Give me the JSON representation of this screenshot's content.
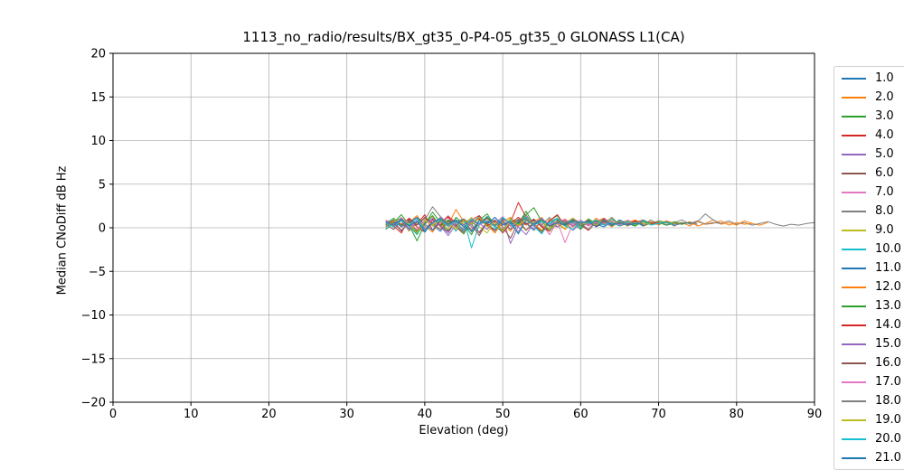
{
  "chart_data": {
    "type": "line",
    "title": "1113_no_radio/results/BX_gt35_0-P4-05_gt35_0 GLONASS L1(CA)",
    "xlabel": "Elevation (deg)",
    "ylabel": "Median CNoDiff dB Hz",
    "xlim": [
      0,
      90
    ],
    "ylim": [
      -20,
      20
    ],
    "xticks": [
      0,
      10,
      20,
      30,
      40,
      50,
      60,
      70,
      80,
      90
    ],
    "yticks": [
      -20,
      -15,
      -10,
      -5,
      0,
      5,
      10,
      15,
      20
    ],
    "grid": true,
    "grid_color": "#b0b0b0",
    "spine_color": "#000000",
    "text_color": "#000000",
    "legend_position": "right-outside",
    "series": [
      {
        "name": "1.0",
        "color": "#1f77b4",
        "x_start": 35,
        "x_step": 1,
        "values": [
          0.5,
          0.2,
          0.8,
          -0.1,
          0.4,
          1.1,
          0.3,
          -0.4,
          0.6,
          0.9,
          0.1,
          0.5,
          1.3,
          0.4,
          -0.2,
          0.7,
          0.2,
          1.0,
          0.5,
          -0.3,
          0.8,
          0.3,
          1.1,
          0.2,
          0.6,
          -0.1,
          0.9,
          0.4,
          0.1,
          0.7,
          0.3,
          0.5,
          0.2,
          0.8,
          0.4,
          0.6,
          0.3,
          0.5,
          0.4
        ]
      },
      {
        "name": "2.0",
        "color": "#ff7f0e",
        "x_start": 35,
        "x_step": 1,
        "values": [
          0.3,
          0.9,
          0.1,
          0.6,
          1.4,
          0.2,
          -0.5,
          0.8,
          0.3,
          2.1,
          0.7,
          -0.2,
          0.5,
          1.0,
          0.2,
          0.6,
          -0.4,
          0.9,
          0.3,
          0.7,
          1.2,
          0.1,
          0.5,
          -0.2,
          0.8,
          0.4,
          1.0,
          0.3,
          0.6,
          0.1,
          0.7,
          0.4,
          0.9,
          0.2,
          0.5,
          0.8,
          0.3,
          0.6,
          0.4,
          0.7,
          0.2,
          0.5,
          0.9,
          0.4,
          0.6,
          0.3,
          0.8,
          0.5,
          0.3,
          0.6
        ]
      },
      {
        "name": "3.0",
        "color": "#2ca02c",
        "x_start": 35,
        "x_step": 1,
        "values": [
          -0.2,
          0.6,
          1.5,
          0.3,
          -1.5,
          0.4,
          1.8,
          0.6,
          -0.3,
          1.2,
          0.4,
          -0.8,
          0.9,
          1.6,
          0.2,
          -0.5,
          1.1,
          0.5,
          1.9,
          0.3,
          -0.4,
          0.8,
          1.4,
          0.2,
          0.7,
          -0.2,
          1.0,
          0.5,
          0.9,
          0.3,
          0.6,
          0.8,
          0.4,
          0.7,
          0.5,
          0.8,
          0.6
        ]
      },
      {
        "name": "4.0",
        "color": "#d62728",
        "x_start": 35,
        "x_step": 1,
        "values": [
          0.8,
          0.2,
          -0.6,
          1.1,
          0.4,
          1.5,
          -0.3,
          0.7,
          1.2,
          0.1,
          -0.7,
          0.9,
          1.4,
          0.3,
          -0.4,
          1.0,
          0.6,
          2.9,
          1.2,
          0.4,
          -0.6,
          0.8,
          1.5,
          0.2,
          0.9,
          0.3,
          -0.3,
          0.7,
          1.1,
          0.4,
          0.8,
          0.2,
          0.6,
          0.9,
          0.5
        ]
      },
      {
        "name": "5.0",
        "color": "#9467bd",
        "x_start": 35,
        "x_step": 1,
        "values": [
          0.1,
          0.7,
          -0.3,
          0.5,
          1.0,
          -0.1,
          0.6,
          0.2,
          -0.9,
          0.4,
          0.8,
          0.1,
          -0.5,
          0.7,
          0.3,
          1.1,
          -1.8,
          0.2,
          0.6,
          -0.2,
          0.9,
          0.4,
          0.1,
          0.7,
          -0.3,
          0.5,
          0.8,
          0.2,
          0.6,
          0.3,
          0.7,
          0.4,
          0.5
        ]
      },
      {
        "name": "6.0",
        "color": "#8c564b",
        "x_start": 35,
        "x_step": 1,
        "values": [
          0.4,
          -0.2,
          0.9,
          0.3,
          -0.7,
          0.6,
          1.1,
          0.2,
          -0.4,
          0.8,
          0.3,
          1.0,
          -0.6,
          0.5,
          0.9,
          0.1,
          -1.2,
          0.7,
          0.4,
          1.0,
          0.2,
          -0.3,
          0.6,
          0.9,
          0.3,
          0.5,
          -0.2,
          0.7,
          0.4,
          0.6,
          0.2,
          0.5
        ]
      },
      {
        "name": "7.0",
        "color": "#e377c2",
        "x_start": 35,
        "x_step": 1,
        "values": [
          0.9,
          0.4,
          1.2,
          0.1,
          0.6,
          -0.3,
          1.0,
          0.5,
          1.4,
          0.2,
          -0.5,
          0.8,
          0.3,
          1.1,
          0.6,
          -0.2,
          0.9,
          0.4,
          1.3,
          0.1,
          0.5,
          -0.8,
          0.7,
          1.0,
          0.3,
          0.6,
          0.2,
          0.8,
          0.4,
          0.7,
          0.3,
          0.9,
          0.5,
          0.6,
          0.4,
          0.7
        ]
      },
      {
        "name": "8.0",
        "color": "#7f7f7f",
        "x_start": 35,
        "x_step": 1,
        "values": [
          0.2,
          0.7,
          1.1,
          0.4,
          -0.3,
          0.9,
          2.4,
          1.3,
          0.5,
          -0.2,
          0.8,
          0.3,
          1.2,
          0.6,
          -0.4,
          1.0,
          0.4,
          0.8,
          1.5,
          0.2,
          -0.6,
          0.7,
          1.1,
          0.3,
          0.9,
          0.4,
          -0.2,
          0.8,
          0.5,
          1.2,
          0.3,
          0.7,
          0.2,
          0.9,
          0.5,
          0.8,
          0.3,
          0.6,
          0.9,
          0.4,
          0.7,
          1.6,
          0.9,
          0.5,
          0.8,
          0.4,
          0.6,
          0.3,
          0.5,
          0.7,
          0.4,
          0.2,
          0.4,
          0.3,
          0.5,
          0.6
        ]
      },
      {
        "name": "9.0",
        "color": "#bcbd22",
        "x_start": 35,
        "x_step": 1,
        "values": [
          0.6,
          0.1,
          0.8,
          -0.4,
          0.5,
          1.0,
          0.2,
          0.7,
          -0.2,
          0.9,
          0.4,
          1.2,
          0.1,
          -0.6,
          0.8,
          0.3,
          1.0,
          0.5,
          -0.3,
          0.7,
          1.1,
          0.2,
          0.6,
          -0.1,
          0.9,
          0.3,
          0.7,
          0.4,
          1.0,
          0.2,
          0.5,
          0.8,
          0.3,
          0.6,
          0.4,
          0.7,
          0.5,
          0.6
        ]
      },
      {
        "name": "10.0",
        "color": "#17becf",
        "x_start": 35,
        "x_step": 1,
        "values": [
          -0.1,
          0.5,
          0.9,
          0.2,
          -0.8,
          0.6,
          1.1,
          0.3,
          0.7,
          -0.4,
          1.0,
          -2.3,
          0.4,
          0.8,
          0.1,
          -0.5,
          0.9,
          0.5,
          1.2,
          0.2,
          -0.7,
          0.6,
          1.0,
          0.3,
          0.7,
          0.1,
          0.8,
          0.4,
          0.6,
          0.2,
          0.7,
          0.3,
          0.5,
          0.4
        ]
      },
      {
        "name": "11.0",
        "color": "#1f77b4",
        "x_start": 35,
        "x_step": 1,
        "values": [
          0.3,
          0.8,
          0.1,
          0.6,
          1.2,
          0.4,
          -0.3,
          0.9,
          0.2,
          0.7,
          1.0,
          -0.5,
          0.5,
          1.3,
          0.2,
          0.8,
          -0.2,
          0.6,
          1.1,
          0.3,
          0.9,
          -0.4,
          0.7,
          0.2,
          1.0,
          0.4,
          0.8,
          0.1,
          0.6,
          0.3,
          0.9,
          0.5,
          0.7,
          0.2,
          0.6,
          0.4,
          0.8,
          0.3,
          0.5,
          0.6,
          0.4
        ]
      },
      {
        "name": "12.0",
        "color": "#ff7f0e",
        "x_start": 35,
        "x_step": 1,
        "values": [
          0.7,
          0.2,
          1.0,
          0.5,
          -0.4,
          0.8,
          1.3,
          0.1,
          0.6,
          -0.2,
          0.9,
          0.4,
          1.1,
          0.3,
          -0.6,
          0.7,
          1.2,
          0.2,
          0.8,
          0.5,
          -0.3,
          1.0,
          0.4,
          0.9,
          0.1,
          0.7,
          0.3,
          1.1,
          0.5,
          0.8,
          0.2,
          0.6,
          0.9,
          0.4,
          0.7,
          0.3,
          0.8,
          0.5,
          0.6,
          0.2,
          0.7,
          0.4,
          0.5,
          0.8,
          0.3,
          0.6,
          0.4,
          0.5
        ]
      },
      {
        "name": "13.0",
        "color": "#2ca02c",
        "x_start": 35,
        "x_step": 1,
        "values": [
          0.5,
          1.1,
          0.3,
          0.8,
          -0.5,
          0.6,
          1.4,
          0.2,
          0.9,
          0.4,
          -0.7,
          1.0,
          0.3,
          1.2,
          0.6,
          -0.3,
          0.8,
          0.4,
          1.5,
          2.3,
          0.7,
          -0.2,
          0.9,
          0.5,
          1.1,
          0.2,
          0.6,
          0.8,
          0.3,
          1.0,
          0.4,
          0.7,
          0.2,
          0.8,
          0.5,
          0.6,
          0.3,
          0.7,
          0.4,
          0.6
        ]
      },
      {
        "name": "14.0",
        "color": "#d62728",
        "x_start": 35,
        "x_step": 1,
        "values": [
          0.2,
          0.8,
          0.4,
          1.1,
          0.1,
          -0.5,
          0.9,
          0.3,
          1.3,
          0.6,
          -0.2,
          0.7,
          1.0,
          0.2,
          0.8,
          -0.6,
          0.5,
          1.2,
          0.4,
          0.9,
          0.1,
          -0.4,
          0.8,
          0.3,
          1.1,
          0.5,
          0.7,
          0.2,
          0.9,
          0.4,
          0.6,
          0.3,
          0.8,
          0.4,
          0.5,
          0.6
        ]
      },
      {
        "name": "15.0",
        "color": "#9467bd",
        "x_start": 35,
        "x_step": 1,
        "values": [
          0.6,
          0.1,
          0.9,
          -0.3,
          0.7,
          0.4,
          1.1,
          0.2,
          -0.6,
          0.8,
          0.3,
          1.0,
          0.5,
          -0.2,
          0.9,
          0.4,
          0.7,
          0.1,
          -0.8,
          0.6,
          1.0,
          0.3,
          0.5,
          0.8,
          0.2,
          0.7,
          0.4,
          0.6,
          0.3,
          0.5,
          0.4,
          0.6
        ]
      },
      {
        "name": "16.0",
        "color": "#8c564b",
        "x_start": 35,
        "x_step": 1,
        "values": [
          0.1,
          0.6,
          -0.4,
          0.9,
          0.3,
          1.2,
          0.5,
          -0.2,
          0.8,
          0.2,
          1.0,
          0.4,
          -0.9,
          0.7,
          0.3,
          1.1,
          0.5,
          0.9,
          -0.3,
          0.6,
          1.0,
          0.2,
          0.7,
          0.4,
          0.8,
          0.3,
          0.6,
          0.5,
          0.7,
          0.4,
          0.5
        ]
      },
      {
        "name": "17.0",
        "color": "#e377c2",
        "x_start": 35,
        "x_step": 1,
        "values": [
          0.8,
          0.3,
          1.1,
          0.5,
          -0.2,
          0.9,
          0.4,
          1.2,
          0.1,
          0.6,
          -0.5,
          1.0,
          0.3,
          0.8,
          0.5,
          1.3,
          0.2,
          -0.4,
          0.9,
          0.6,
          1.1,
          0.3,
          0.7,
          -1.7,
          0.5,
          0.9,
          0.2,
          0.6,
          0.4,
          0.8,
          0.3,
          0.6,
          0.5
        ]
      },
      {
        "name": "18.0",
        "color": "#7f7f7f",
        "x_start": 35,
        "x_step": 1,
        "values": [
          0.4,
          0.9,
          0.2,
          0.7,
          1.2,
          -0.3,
          0.6,
          1.0,
          0.3,
          0.8,
          -0.5,
          0.9,
          0.4,
          1.1,
          0.2,
          0.7,
          -0.2,
          1.0,
          0.5,
          0.8,
          0.3,
          1.2,
          0.1,
          0.6,
          0.9,
          0.3,
          0.7,
          0.4,
          1.0,
          0.2,
          0.8,
          0.5,
          0.6,
          0.3,
          0.9,
          0.4,
          0.7,
          0.2,
          0.6,
          0.5,
          0.8,
          0.4,
          0.6,
          0.5
        ]
      },
      {
        "name": "19.0",
        "color": "#bcbd22",
        "x_start": 35,
        "x_step": 1,
        "values": [
          0.2,
          0.7,
          1.0,
          0.4,
          -0.6,
          0.8,
          0.3,
          1.1,
          0.5,
          -0.2,
          0.9,
          0.4,
          1.2,
          0.1,
          0.6,
          -0.4,
          0.8,
          0.3,
          1.0,
          0.5,
          0.9,
          -0.3,
          0.7,
          0.2,
          1.1,
          0.4,
          0.6,
          0.3,
          0.8,
          0.5,
          0.7,
          0.2,
          0.6,
          0.4,
          0.5
        ]
      },
      {
        "name": "20.0",
        "color": "#17becf",
        "x_start": 35,
        "x_step": 1,
        "values": [
          0.5,
          0.1,
          0.8,
          0.3,
          1.1,
          -0.4,
          0.6,
          0.9,
          0.2,
          0.7,
          -0.3,
          1.0,
          0.4,
          0.8,
          0.1,
          1.2,
          0.5,
          -0.6,
          0.9,
          0.3,
          0.7,
          0.4,
          1.1,
          0.2,
          -0.2,
          0.8,
          0.5,
          0.9,
          0.3,
          0.6,
          0.2,
          0.7,
          0.4,
          0.8,
          0.3,
          0.5,
          0.6,
          0.4
        ]
      },
      {
        "name": "21.0",
        "color": "#1f77b4",
        "x_start": 35,
        "x_step": 1,
        "values": [
          0.7,
          0.3,
          1.0,
          0.2,
          0.8,
          -0.5,
          0.6,
          1.1,
          0.4,
          0.9,
          0.1,
          -0.3,
          0.8,
          0.5,
          1.2,
          0.3,
          0.7,
          -0.7,
          0.9,
          0.4,
          1.0,
          0.2,
          0.6,
          0.3,
          0.9,
          0.5,
          0.7,
          0.1,
          0.8,
          0.4,
          0.6,
          0.3,
          0.5,
          0.4
        ]
      }
    ]
  }
}
